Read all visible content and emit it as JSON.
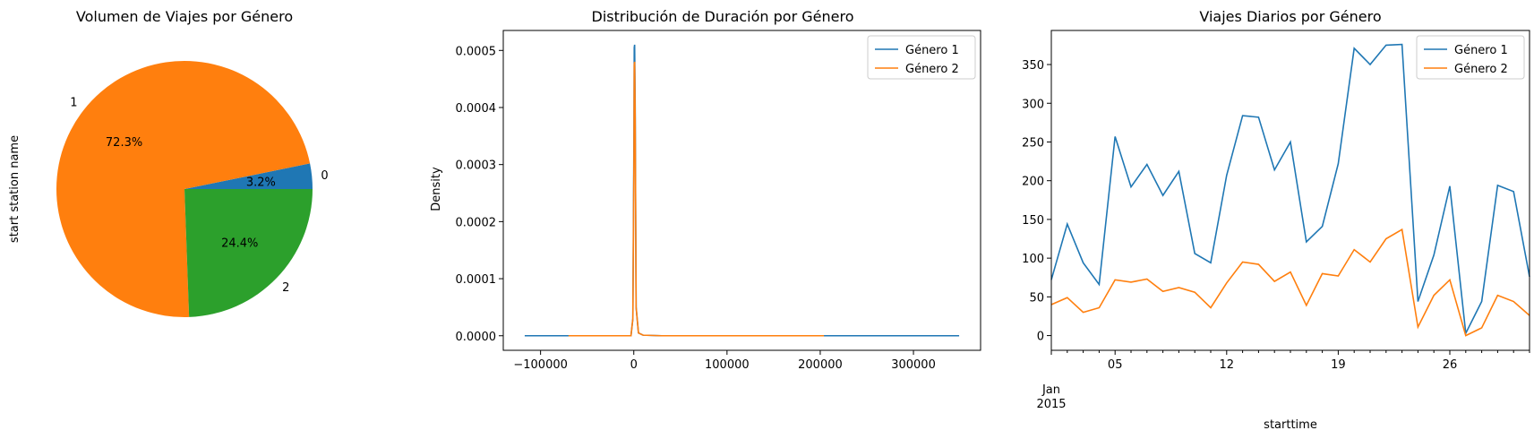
{
  "chart_data": [
    {
      "type": "pie",
      "title": "Volumen de Viajes por Género",
      "ylabel": "start station name",
      "slices": [
        {
          "label": "0",
          "value": 3.2,
          "pct_label": "3.2%",
          "color": "#1f77b4"
        },
        {
          "label": "1",
          "value": 72.3,
          "pct_label": "72.3%",
          "color": "#ff7f0e"
        },
        {
          "label": "2",
          "value": 24.4,
          "pct_label": "24.4%",
          "color": "#2ca02c"
        }
      ]
    },
    {
      "type": "line",
      "title": "Distribución de Duración por Género",
      "xlabel": "",
      "ylabel": "Density",
      "xlim": [
        -140000,
        372000
      ],
      "ylim": [
        -2.55e-05,
        0.000535
      ],
      "xticks": [
        -100000,
        0,
        100000,
        200000,
        300000
      ],
      "xtick_labels": [
        "−100000",
        "0",
        "100000",
        "200000",
        "300000"
      ],
      "yticks": [
        0,
        0.0001,
        0.0002,
        0.0003,
        0.0004,
        0.0005
      ],
      "ytick_labels": [
        "0.0000",
        "0.0001",
        "0.0002",
        "0.0003",
        "0.0004",
        "0.0005"
      ],
      "legend": "top-right",
      "series": [
        {
          "name": "Género 1",
          "color": "#1f77b4",
          "x": [
            -117000,
            -3000,
            -1000,
            200,
            500,
            900,
            1500,
            2500,
            5000,
            10000,
            30000,
            349000
          ],
          "y": [
            0,
            0,
            3e-05,
            0.00036,
            0.000505,
            0.00051,
            0.0004,
            5e-05,
            5e-06,
            1e-06,
            0,
            0
          ]
        },
        {
          "name": "Género 2",
          "color": "#ff7f0e",
          "x": [
            -70000,
            -3000,
            -1000,
            200,
            500,
            900,
            1500,
            2500,
            5000,
            10000,
            30000,
            204000
          ],
          "y": [
            0,
            0,
            3e-05,
            0.00032,
            0.000475,
            0.00048,
            0.00038,
            5e-05,
            5e-06,
            1e-06,
            0,
            0
          ]
        }
      ]
    },
    {
      "type": "line",
      "title": "Viajes Diarios por Género",
      "xlabel": "starttime",
      "ylabel": "",
      "xlim": [
        1,
        31
      ],
      "ylim": [
        -19,
        394
      ],
      "xticks": [
        5,
        12,
        19,
        26
      ],
      "xtick_labels": [
        "05",
        "12",
        "19",
        "26"
      ],
      "xtick_month_label": "Jan\n2015",
      "yticks": [
        0,
        50,
        100,
        150,
        200,
        250,
        300,
        350
      ],
      "ytick_labels": [
        "0",
        "50",
        "100",
        "150",
        "200",
        "250",
        "300",
        "350"
      ],
      "legend": "top-right",
      "x": [
        1,
        2,
        3,
        4,
        5,
        6,
        7,
        8,
        9,
        10,
        11,
        12,
        13,
        14,
        15,
        16,
        17,
        18,
        19,
        20,
        21,
        22,
        23,
        24,
        25,
        26,
        27,
        28,
        29,
        30,
        31
      ],
      "series": [
        {
          "name": "Género 1",
          "color": "#1f77b4",
          "values": [
            72,
            144,
            94,
            66,
            257,
            192,
            221,
            181,
            212,
            106,
            94,
            207,
            284,
            282,
            214,
            250,
            121,
            141,
            222,
            371,
            350,
            375,
            376,
            44,
            104,
            193,
            3,
            44,
            194,
            186,
            76
          ]
        },
        {
          "name": "Género 2",
          "color": "#ff7f0e",
          "values": [
            40,
            49,
            30,
            36,
            72,
            69,
            73,
            57,
            62,
            56,
            36,
            68,
            95,
            92,
            70,
            82,
            39,
            80,
            77,
            111,
            95,
            125,
            137,
            11,
            52,
            72,
            0,
            10,
            52,
            44,
            26
          ]
        }
      ]
    }
  ]
}
